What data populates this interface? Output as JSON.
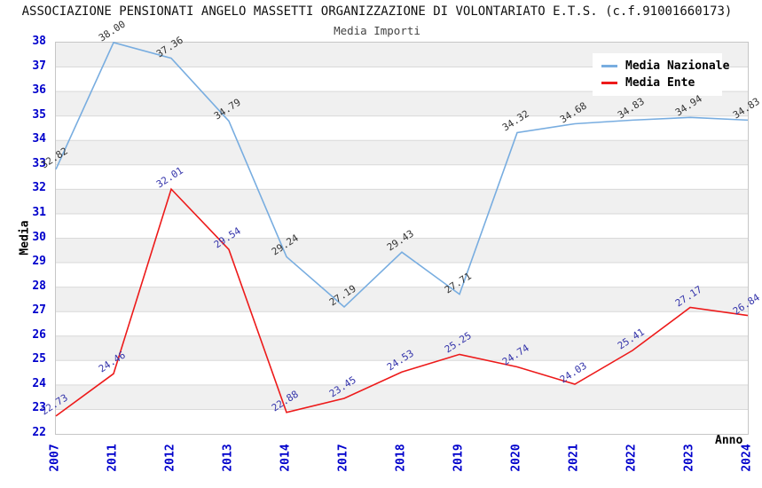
{
  "title": "ASSOCIAZIONE PENSIONATI ANGELO MASSETTI ORGANIZZAZIONE DI VOLONTARIATO E.T.S. (c.f.91001660173)",
  "subtitle": "Media Importi",
  "chart_data": {
    "type": "line",
    "title": "Media Importi",
    "xlabel": "Anno",
    "ylabel": "Media",
    "categories": [
      "2007",
      "2011",
      "2012",
      "2013",
      "2014",
      "2017",
      "2018",
      "2019",
      "2020",
      "2021",
      "2022",
      "2023",
      "2024"
    ],
    "series": [
      {
        "name": "Media Nazionale",
        "color": "#78ade0",
        "label_color": "#333333",
        "values": [
          32.82,
          38.0,
          37.36,
          34.79,
          29.24,
          27.19,
          29.43,
          27.71,
          34.32,
          34.68,
          34.83,
          34.94,
          34.83
        ]
      },
      {
        "name": "Media Ente",
        "color": "#ed1a1a",
        "label_color": "#3333aa",
        "values": [
          22.73,
          24.46,
          32.01,
          29.54,
          22.88,
          23.45,
          24.53,
          25.25,
          24.74,
          24.03,
          25.41,
          27.17,
          26.84
        ]
      }
    ],
    "ylim": [
      22,
      38
    ],
    "ytick_step": 1,
    "grid": true,
    "band_color": "#f0f0f0",
    "grid_color": "#d9d9d9",
    "tick_label_color": "#0000cc",
    "legend_position": "top-right"
  }
}
